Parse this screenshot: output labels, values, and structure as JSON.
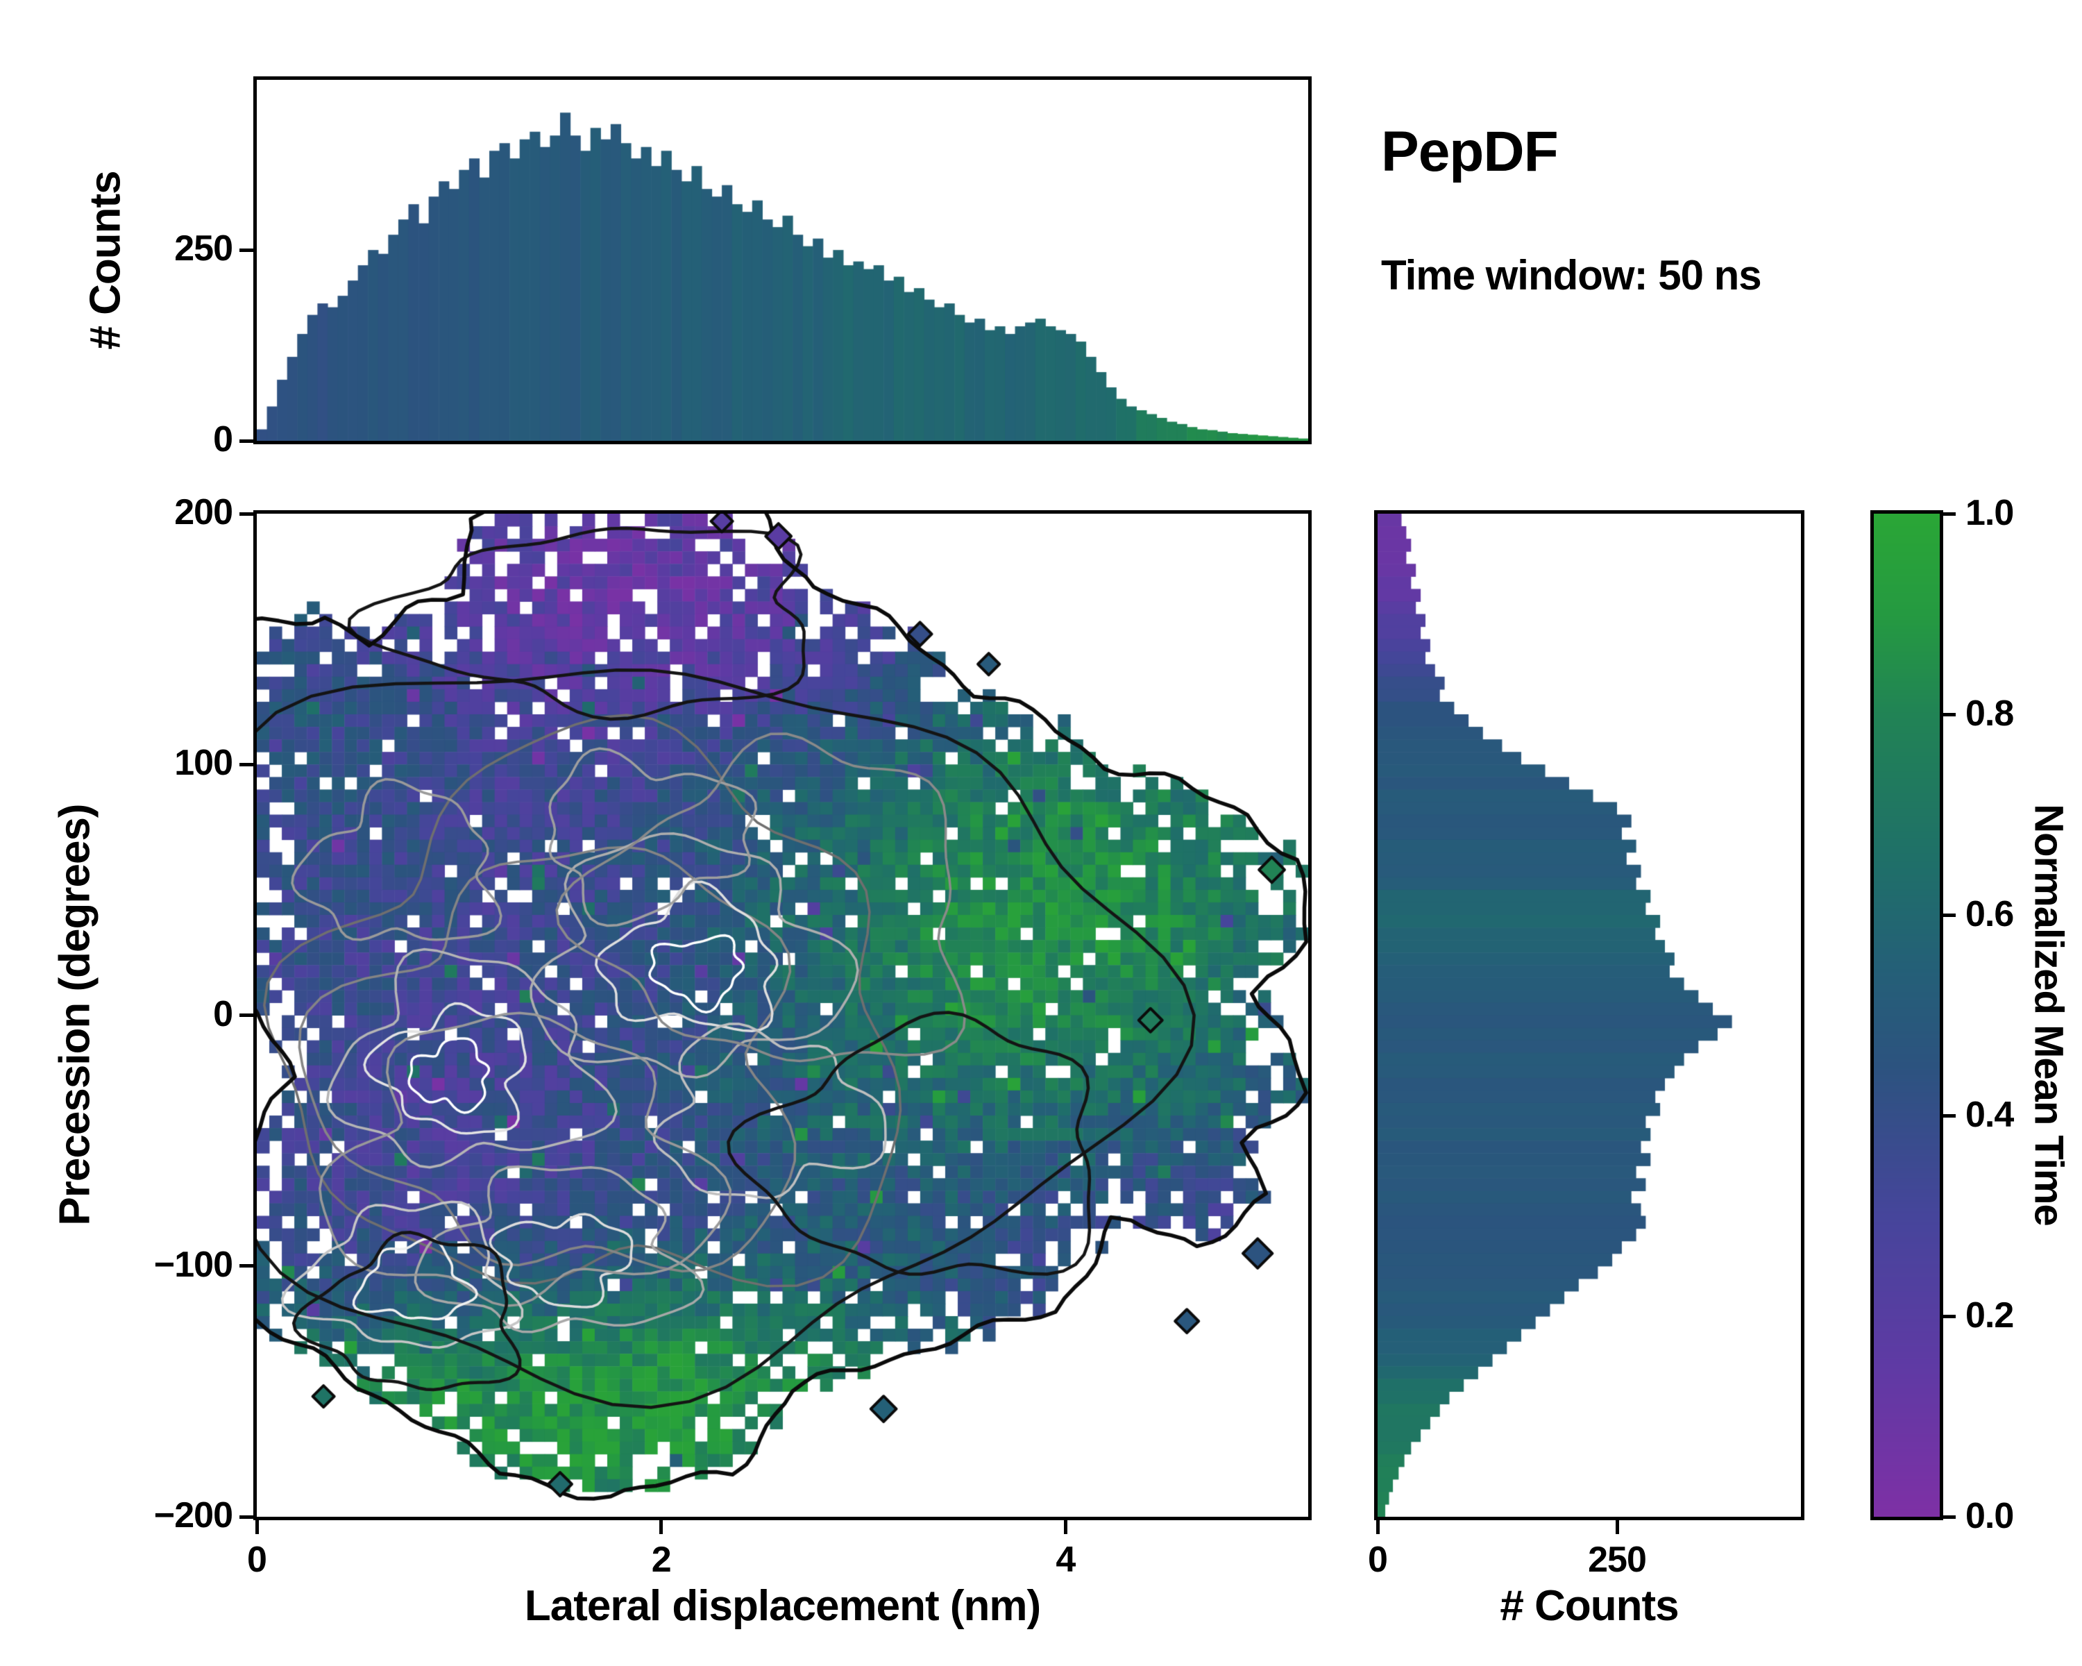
{
  "figure": {
    "title": "PepDF",
    "subtitle": "Time window: 50 ns",
    "background": "#ffffff"
  },
  "axes": {
    "main": {
      "x_label": "Lateral displacement (nm)",
      "y_label": "Precession (degrees)",
      "x_range": [
        0,
        5.2
      ],
      "y_range": [
        -200,
        200
      ],
      "x_ticks": [
        "0",
        "2",
        "4"
      ],
      "x_tick_values": [
        0,
        2,
        4
      ],
      "y_ticks": [
        "200",
        "100",
        "0",
        "−100",
        "−200"
      ],
      "y_tick_values": [
        200,
        100,
        0,
        -100,
        -200
      ]
    },
    "top_hist": {
      "y_label": "# Counts",
      "y_ticks": [
        "0",
        "250"
      ],
      "y_tick_values": [
        0,
        250
      ],
      "count_max": 473
    },
    "right_hist": {
      "x_label": "# Counts",
      "x_ticks": [
        "0",
        "250"
      ],
      "x_tick_values": [
        0,
        250
      ],
      "count_max": 442
    },
    "colorbar": {
      "label": "Normalized Mean Time",
      "ticks": [
        "1.0",
        "0.8",
        "0.6",
        "0.4",
        "0.2",
        "0.0"
      ],
      "tick_values": [
        1,
        0.8,
        0.6,
        0.4,
        0.2,
        0
      ],
      "range": [
        0,
        1
      ]
    }
  },
  "colormap": {
    "name": "purple-blue-green",
    "stops": [
      [
        0,
        "#7e30a5"
      ],
      [
        0.15,
        "#5f3aa4"
      ],
      [
        0.3,
        "#46459b"
      ],
      [
        0.45,
        "#2c537f"
      ],
      [
        0.55,
        "#246077"
      ],
      [
        0.65,
        "#1f6f69"
      ],
      [
        0.8,
        "#218355"
      ],
      [
        0.9,
        "#259a41"
      ],
      [
        1,
        "#2aa636"
      ]
    ]
  },
  "chart_data": [
    {
      "type": "bar",
      "name": "lateral-displacement-histogram",
      "orientation": "vertical",
      "xlabel": "Lateral displacement (nm)",
      "ylabel": "# Counts",
      "x_range": [
        0,
        5.2
      ],
      "bin_width": 0.05,
      "ylim": [
        0,
        473
      ],
      "values": [
        15,
        45,
        80,
        110,
        140,
        165,
        180,
        175,
        190,
        210,
        230,
        250,
        245,
        270,
        290,
        310,
        285,
        320,
        340,
        330,
        355,
        370,
        345,
        380,
        390,
        370,
        395,
        405,
        385,
        400,
        430,
        400,
        380,
        410,
        395,
        415,
        390,
        370,
        385,
        360,
        380,
        355,
        340,
        360,
        330,
        320,
        335,
        310,
        300,
        315,
        290,
        280,
        295,
        270,
        255,
        265,
        240,
        250,
        230,
        235,
        225,
        230,
        210,
        215,
        195,
        200,
        185,
        175,
        180,
        165,
        155,
        160,
        145,
        150,
        140,
        150,
        155,
        160,
        150,
        145,
        140,
        130,
        110,
        90,
        70,
        55,
        45,
        40,
        35,
        30,
        25,
        22,
        18,
        15,
        14,
        12,
        10,
        9,
        8,
        7,
        6,
        5,
        4,
        3
      ],
      "color_by": "normalized_mean_time",
      "color_stops_x_t": [
        [
          0,
          0.42
        ],
        [
          0.5,
          0.46
        ],
        [
          1.5,
          0.5
        ],
        [
          2.5,
          0.55
        ],
        [
          3.2,
          0.6
        ],
        [
          3.8,
          0.58
        ],
        [
          4.2,
          0.62
        ],
        [
          4.5,
          0.8
        ],
        [
          4.8,
          0.85
        ],
        [
          5.2,
          0.88
        ]
      ]
    },
    {
      "type": "bar",
      "name": "precession-histogram",
      "orientation": "horizontal",
      "xlabel": "# Counts",
      "ylabel": "Precession (degrees)",
      "y_range": [
        200,
        -200
      ],
      "bin_width": 5,
      "xlim": [
        0,
        442
      ],
      "values": [
        25,
        30,
        35,
        30,
        40,
        35,
        45,
        40,
        50,
        45,
        55,
        50,
        60,
        70,
        65,
        80,
        95,
        110,
        130,
        150,
        175,
        200,
        225,
        250,
        265,
        255,
        270,
        260,
        275,
        270,
        285,
        280,
        295,
        290,
        300,
        310,
        305,
        320,
        335,
        350,
        370,
        355,
        335,
        320,
        310,
        300,
        290,
        295,
        280,
        285,
        275,
        285,
        270,
        280,
        265,
        275,
        280,
        270,
        255,
        245,
        230,
        210,
        195,
        180,
        165,
        150,
        135,
        120,
        105,
        90,
        75,
        65,
        55,
        45,
        35,
        28,
        22,
        16,
        12,
        8
      ],
      "color_by": "normalized_mean_time",
      "color_stops_y_t": [
        [
          -200,
          0.82
        ],
        [
          -175,
          0.75
        ],
        [
          -155,
          0.68
        ],
        [
          -140,
          0.6
        ],
        [
          -125,
          0.52
        ],
        [
          -100,
          0.47
        ],
        [
          -70,
          0.48
        ],
        [
          -40,
          0.5
        ],
        [
          0,
          0.5
        ],
        [
          10,
          0.52
        ],
        [
          28,
          0.58
        ],
        [
          40,
          0.62
        ],
        [
          55,
          0.52
        ],
        [
          90,
          0.5
        ],
        [
          120,
          0.46
        ],
        [
          135,
          0.38
        ],
        [
          150,
          0.28
        ],
        [
          170,
          0.12
        ],
        [
          200,
          0.1
        ]
      ]
    },
    {
      "type": "heatmap",
      "name": "precession-vs-displacement-map",
      "value_label": "Normalized Mean Time",
      "value_range": [
        0,
        1
      ],
      "x_range": [
        0,
        5.2
      ],
      "y_range": [
        -200,
        200
      ],
      "grid": [
        84,
        80
      ],
      "seed": 1337,
      "base_t": 0.45,
      "noise": 0.13,
      "hole_prob": 0.05,
      "edge_hole_prob": 0.3,
      "bumps": [
        [
          1.8,
          170,
          1.5,
          45,
          -0.32
        ],
        [
          0.35,
          150,
          0.5,
          35,
          0.16
        ],
        [
          3.9,
          40,
          1.0,
          75,
          0.42
        ],
        [
          4.5,
          -95,
          0.9,
          45,
          -0.18
        ],
        [
          1.0,
          -165,
          1.3,
          40,
          0.35
        ],
        [
          2.3,
          -150,
          0.9,
          35,
          0.25
        ],
        [
          1.0,
          -40,
          0.9,
          60,
          -0.1
        ],
        [
          1.6,
          60,
          1.2,
          50,
          -0.07
        ],
        [
          1.0,
          -90,
          0.8,
          40,
          -0.08
        ]
      ],
      "boundary_polygon": [
        [
          -0.05,
          100
        ],
        [
          -0.05,
          155
        ],
        [
          0.35,
          160
        ],
        [
          0.55,
          148
        ],
        [
          0.75,
          160
        ],
        [
          1.0,
          168
        ],
        [
          1.05,
          200
        ],
        [
          1.3,
          206
        ],
        [
          2.45,
          206
        ],
        [
          2.6,
          188
        ],
        [
          2.75,
          170
        ],
        [
          3.05,
          160
        ],
        [
          3.3,
          148
        ],
        [
          3.55,
          128
        ],
        [
          3.9,
          118
        ],
        [
          4.2,
          100
        ],
        [
          4.55,
          92
        ],
        [
          4.9,
          80
        ],
        [
          5.15,
          62
        ],
        [
          5.18,
          30
        ],
        [
          4.95,
          10
        ],
        [
          5.1,
          -10
        ],
        [
          5.18,
          -30
        ],
        [
          4.9,
          -50
        ],
        [
          5.0,
          -72
        ],
        [
          4.65,
          -92
        ],
        [
          4.25,
          -82
        ],
        [
          3.95,
          -118
        ],
        [
          3.5,
          -128
        ],
        [
          3.05,
          -138
        ],
        [
          2.65,
          -150
        ],
        [
          2.35,
          -182
        ],
        [
          1.75,
          -192
        ],
        [
          1.2,
          -183
        ],
        [
          0.85,
          -162
        ],
        [
          0.5,
          -148
        ],
        [
          0.2,
          -132
        ],
        [
          -0.05,
          -118
        ],
        [
          -0.05,
          -55
        ],
        [
          0.18,
          -25
        ],
        [
          -0.05,
          5
        ]
      ],
      "satellites": [
        [
          2.58,
          191,
          0.18,
          26
        ],
        [
          3.28,
          152,
          0.4,
          24
        ],
        [
          3.62,
          140,
          0.5,
          22
        ],
        [
          5.02,
          58,
          0.8,
          26
        ],
        [
          4.42,
          -2,
          0.75,
          24
        ],
        [
          4.95,
          -95,
          0.45,
          30
        ],
        [
          4.6,
          -122,
          0.48,
          24
        ],
        [
          3.1,
          -157,
          0.55,
          26
        ],
        [
          1.5,
          -187,
          0.62,
          24
        ],
        [
          0.33,
          -152,
          0.68,
          22
        ],
        [
          2.3,
          197,
          0.2,
          22
        ]
      ],
      "gray_contours": [
        [
          1.7,
          -5,
          1.5,
          108,
          "#6f6f6f",
          0.22
        ],
        [
          1.55,
          -20,
          1.15,
          82,
          "#858585",
          0.25
        ],
        [
          1.05,
          -20,
          0.62,
          40,
          "#b5b5b5",
          0.3
        ],
        [
          0.98,
          -22,
          0.36,
          24,
          "#e3e3e3",
          0.3
        ],
        [
          0.96,
          -24,
          0.19,
          13,
          "#ffffff",
          0.3
        ],
        [
          2.12,
          22,
          0.72,
          46,
          "#aeaeae",
          0.28
        ],
        [
          2.16,
          20,
          0.42,
          26,
          "#dedede",
          0.3
        ],
        [
          2.18,
          18,
          0.22,
          13,
          "#ffffff",
          0.3
        ],
        [
          1.5,
          -95,
          0.62,
          32,
          "#a8a8a8",
          0.3
        ],
        [
          1.52,
          -97,
          0.32,
          17,
          "#dcdcdc",
          0.3
        ],
        [
          2.52,
          -40,
          0.52,
          32,
          "#bfbfbf",
          0.3
        ],
        [
          0.72,
          58,
          0.46,
          30,
          "#9a9a9a",
          0.3
        ],
        [
          1.92,
          72,
          0.5,
          30,
          "#9f9f9f",
          0.3
        ],
        [
          2.62,
          42,
          0.92,
          62,
          "#8a8a8a",
          0.25
        ],
        [
          1.3,
          -60,
          0.9,
          55,
          "#999999",
          0.28
        ],
        [
          0.75,
          -105,
          0.5,
          28,
          "#c6c6c6",
          0.3
        ],
        [
          0.78,
          -107,
          0.26,
          15,
          "#f0f0f0",
          0.3
        ]
      ],
      "black_contours": [
        [
          1.95,
          0,
          2.35,
          142,
          0.16
        ],
        [
          1.75,
          158,
          1.05,
          36,
          0.25
        ],
        [
          3.35,
          -55,
          0.85,
          50,
          0.22
        ],
        [
          0.8,
          -120,
          0.5,
          30,
          0.25
        ]
      ]
    }
  ]
}
